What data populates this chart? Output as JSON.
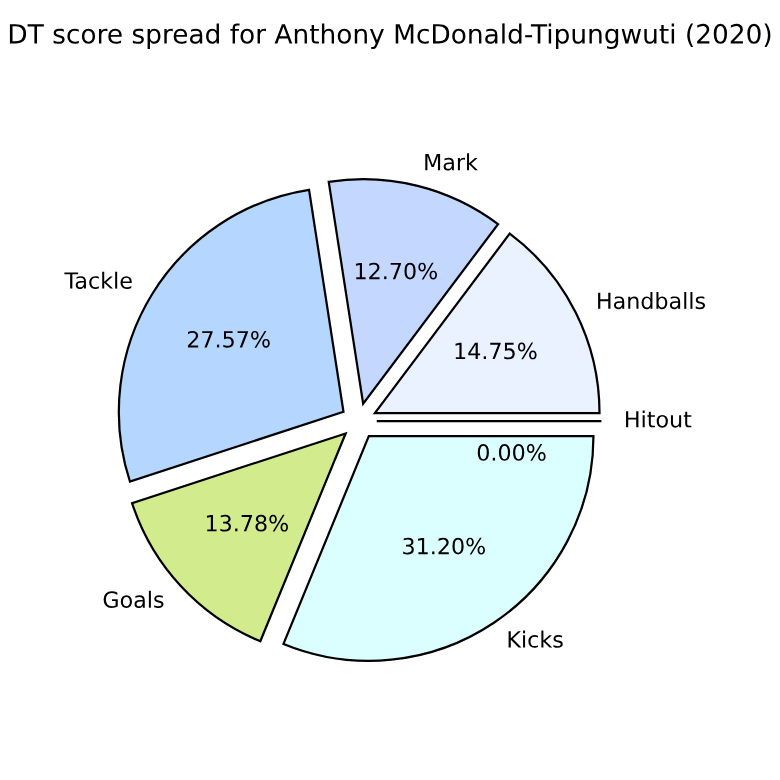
{
  "chart_data": {
    "type": "pie",
    "title": "DT score spread for Anthony McDonald-Tipungwuti (2020)",
    "categories": [
      "Hitout",
      "Handballs",
      "Mark",
      "Tackle",
      "Goals",
      "Kicks"
    ],
    "values": [
      0,
      14.75,
      12.7,
      27.57,
      13.78,
      31.2
    ],
    "value_labels": [
      "0.00%",
      "14.75%",
      "12.70%",
      "27.57%",
      "13.78%",
      "31.20%"
    ],
    "colors": [
      "#c8c8c8",
      "#eaf1ff",
      "#c4d8ff",
      "#b4d6ff",
      "#d2eb8c",
      "#dbffff"
    ]
  }
}
